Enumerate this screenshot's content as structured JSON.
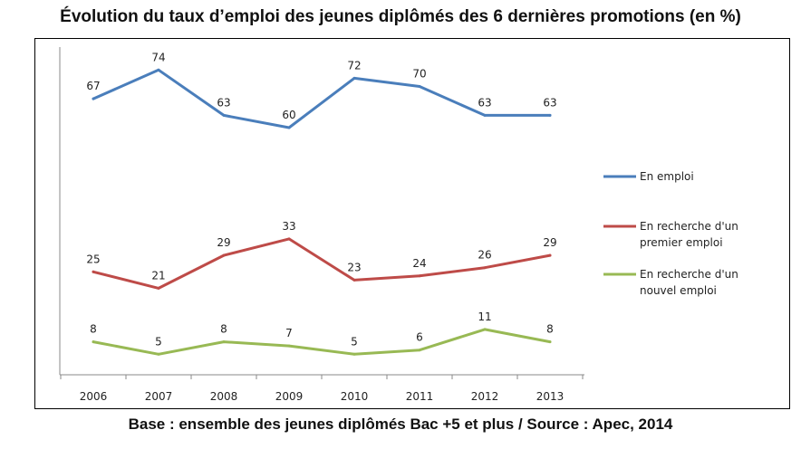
{
  "title": "Évolution du taux d’emploi des jeunes diplômés des 6 dernières promotions (en %)",
  "footer": "Base : ensemble des jeunes diplômés Bac +5 et plus / Source : Apec, 2014",
  "chart_data": {
    "type": "line",
    "categories": [
      "2006",
      "2007",
      "2008",
      "2009",
      "2010",
      "2011",
      "2012",
      "2013"
    ],
    "ylim": [
      0,
      80
    ],
    "grid": false,
    "legend_position": "right",
    "series": [
      {
        "name": "En emploi",
        "color": "#4a7ebb",
        "values": [
          67,
          74,
          63,
          60,
          72,
          70,
          63,
          63
        ]
      },
      {
        "name": "En recherche d'un premier emploi",
        "color": "#be4b48",
        "values": [
          25,
          21,
          29,
          33,
          23,
          24,
          26,
          29
        ]
      },
      {
        "name": "En recherche d'un nouvel emploi",
        "color": "#98b954",
        "values": [
          8,
          5,
          8,
          7,
          5,
          6,
          11,
          8
        ]
      }
    ]
  }
}
